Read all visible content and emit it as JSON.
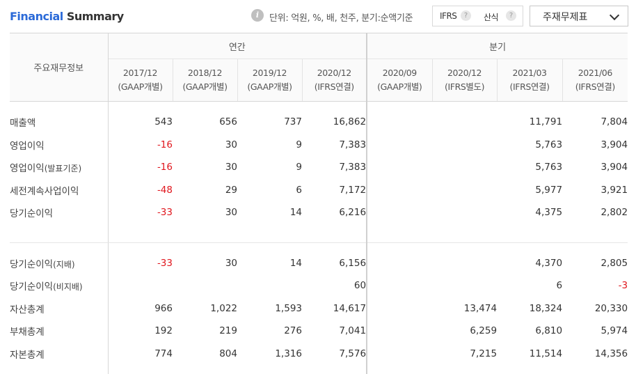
{
  "header": {
    "title_part1": "Financial",
    "title_part2": " Summary",
    "info_glyph": "i",
    "unit_text": "단위: 억원, %, 배, 천주, 분기:순액기준",
    "ifrs_label": "IFRS",
    "formula_label": "산식",
    "help_glyph": "?",
    "dropdown_label": "주재무제표"
  },
  "table": {
    "row_header": "주요재무정보",
    "group_annual": "연간",
    "group_quarter": "분기",
    "columns": [
      {
        "period": "2017/12",
        "basis": "(GAAP개별)"
      },
      {
        "period": "2018/12",
        "basis": "(GAAP개별)"
      },
      {
        "period": "2019/12",
        "basis": "(GAAP개별)"
      },
      {
        "period": "2020/12",
        "basis": "(IFRS연결)"
      },
      {
        "period": "2020/09",
        "basis": "(GAAP개별)"
      },
      {
        "period": "2020/12",
        "basis": "(IFRS별도)"
      },
      {
        "period": "2021/03",
        "basis": "(IFRS연결)"
      },
      {
        "period": "2021/06",
        "basis": "(IFRS연결)"
      }
    ],
    "rows": [
      {
        "label": "매출액",
        "values": [
          "543",
          "656",
          "737",
          "16,862",
          "",
          "",
          "11,791",
          "7,804"
        ]
      },
      {
        "label": "영업이익",
        "values": [
          "-16",
          "30",
          "9",
          "7,383",
          "",
          "",
          "5,763",
          "3,904"
        ]
      },
      {
        "label": "영업이익",
        "label_sub": "(발표기준)",
        "values": [
          "-16",
          "30",
          "9",
          "7,383",
          "",
          "",
          "5,763",
          "3,904"
        ]
      },
      {
        "label": "세전계속사업이익",
        "values": [
          "-48",
          "29",
          "6",
          "7,172",
          "",
          "",
          "5,977",
          "3,921"
        ]
      },
      {
        "label": "당기순이익",
        "values": [
          "-33",
          "30",
          "14",
          "6,216",
          "",
          "",
          "4,375",
          "2,802"
        ]
      },
      {
        "label": "당기순이익",
        "label_sub": "(지배)",
        "values": [
          "-33",
          "30",
          "14",
          "6,156",
          "",
          "",
          "4,370",
          "2,805"
        ]
      },
      {
        "label": "당기순이익",
        "label_sub": "(비지배)",
        "values": [
          "",
          "",
          "",
          "60",
          "",
          "",
          "6",
          "-3"
        ]
      },
      {
        "label": "자산총계",
        "values": [
          "966",
          "1,022",
          "1,593",
          "14,617",
          "",
          "13,474",
          "18,324",
          "20,330"
        ]
      },
      {
        "label": "부채총계",
        "values": [
          "192",
          "219",
          "276",
          "7,041",
          "",
          "6,259",
          "6,810",
          "5,974"
        ]
      },
      {
        "label": "자본총계",
        "values": [
          "774",
          "804",
          "1,316",
          "7,576",
          "",
          "7,215",
          "11,514",
          "14,356"
        ]
      }
    ]
  },
  "colors": {
    "accent": "#2b6ad8",
    "negative": "#e0161d",
    "header_bg": "#fafafa",
    "border": "#d6d6d6"
  }
}
